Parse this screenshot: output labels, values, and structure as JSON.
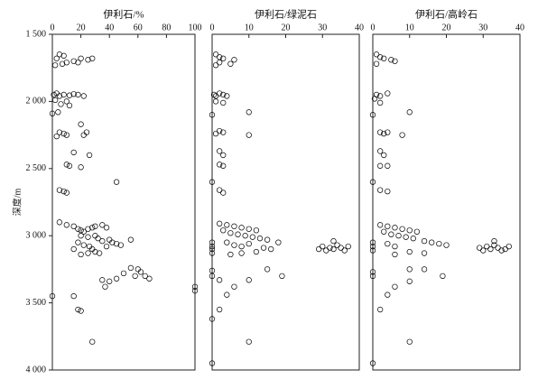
{
  "chart_data": [
    {
      "type": "scatter",
      "title": "伊利石/%",
      "ylabel": "深度/m",
      "color": "#000000",
      "xlim": [
        0,
        100
      ],
      "xticks": [
        0,
        20,
        40,
        60,
        80,
        100
      ],
      "ylim": [
        1500,
        4000
      ],
      "y_reversed": true,
      "yticks": [
        {
          "value": 1500,
          "label": "1 500"
        },
        {
          "value": 2000,
          "label": "2 000"
        },
        {
          "value": 2500,
          "label": "2 500"
        },
        {
          "value": 3000,
          "label": "3 000"
        },
        {
          "value": 3500,
          "label": "3 500"
        },
        {
          "value": 4000,
          "label": "4 000"
        }
      ],
      "x": [
        5,
        8,
        3,
        20,
        25,
        28,
        15,
        10,
        7,
        2,
        18,
        1,
        3,
        5,
        8,
        12,
        15,
        18,
        22,
        2,
        10,
        6,
        0,
        4,
        12,
        20,
        24,
        5,
        8,
        10,
        22,
        3,
        15,
        26,
        10,
        12,
        20,
        45,
        5,
        8,
        10,
        5,
        10,
        15,
        18,
        20,
        22,
        25,
        28,
        30,
        35,
        38,
        20,
        25,
        30,
        32,
        35,
        40,
        42,
        45,
        48,
        55,
        18,
        22,
        26,
        28,
        30,
        33,
        20,
        25,
        15,
        38,
        55,
        60,
        50,
        62,
        65,
        68,
        58,
        45,
        35,
        37,
        40,
        100,
        100,
        0,
        15,
        18,
        20,
        28
      ],
      "y": [
        1650,
        1660,
        1680,
        1680,
        1690,
        1680,
        1700,
        1710,
        1720,
        1730,
        1710,
        1950,
        1940,
        1960,
        1950,
        1955,
        1945,
        1950,
        1960,
        1990,
        2000,
        2020,
        2090,
        2080,
        2030,
        2170,
        2230,
        2230,
        2240,
        2250,
        2250,
        2260,
        2380,
        2400,
        2470,
        2480,
        2490,
        2600,
        2660,
        2670,
        2680,
        2900,
        2920,
        2930,
        2950,
        2960,
        2970,
        2950,
        2940,
        2930,
        2920,
        2940,
        3000,
        3010,
        3000,
        3020,
        3040,
        3030,
        3050,
        3060,
        3070,
        3030,
        3050,
        3070,
        3080,
        3100,
        3120,
        3130,
        3140,
        3130,
        3100,
        3080,
        3240,
        3250,
        3280,
        3270,
        3300,
        3320,
        3300,
        3320,
        3330,
        3380,
        3340,
        3380,
        3410,
        3450,
        3450,
        3550,
        3560,
        3790
      ]
    },
    {
      "type": "scatter",
      "title": "伊利石/绿泥石",
      "color": "#000000",
      "xlim": [
        0,
        40
      ],
      "xticks": [
        0,
        10,
        20,
        30,
        40
      ],
      "ylim": [
        1500,
        4000
      ],
      "y_reversed": true,
      "x": [
        1,
        2,
        3,
        6,
        5,
        1,
        2,
        0.5,
        1,
        2,
        3,
        4,
        1,
        3,
        0,
        10,
        2,
        1,
        3,
        10,
        2,
        3,
        2,
        3,
        0,
        2,
        3,
        2,
        4,
        6,
        8,
        10,
        12,
        3,
        5,
        7,
        9,
        11,
        13,
        15,
        4,
        6,
        8,
        10,
        14,
        16,
        18,
        0,
        0,
        0,
        0,
        29,
        30,
        31,
        32,
        33,
        34,
        35,
        36,
        37,
        33,
        8,
        12,
        5,
        0,
        0,
        15,
        19,
        2,
        10,
        4,
        6,
        2,
        0,
        10,
        0
      ],
      "y": [
        1650,
        1670,
        1680,
        1690,
        1720,
        1730,
        1710,
        1950,
        1960,
        1940,
        1950,
        1960,
        2000,
        2010,
        2100,
        2080,
        2220,
        2240,
        2230,
        2250,
        2370,
        2400,
        2470,
        2480,
        2600,
        2660,
        2680,
        2910,
        2920,
        2930,
        2940,
        2950,
        2960,
        2960,
        2980,
        2990,
        3000,
        3010,
        3020,
        3030,
        3050,
        3070,
        3080,
        3060,
        3090,
        3100,
        3050,
        3050,
        3080,
        3100,
        3130,
        3100,
        3080,
        3110,
        3090,
        3100,
        3070,
        3090,
        3110,
        3080,
        3040,
        3130,
        3120,
        3140,
        3260,
        3300,
        3250,
        3300,
        3330,
        3330,
        3440,
        3380,
        3550,
        3620,
        3790,
        3950
      ]
    },
    {
      "type": "scatter",
      "title": "伊利石/高岭石",
      "color": "#000000",
      "xlim": [
        0,
        40
      ],
      "xticks": [
        0,
        10,
        20,
        30,
        40
      ],
      "ylim": [
        1500,
        4000
      ],
      "y_reversed": true,
      "x": [
        1,
        2,
        3,
        5,
        6,
        1,
        1,
        2,
        4,
        0.5,
        2,
        10,
        0,
        2,
        3,
        4,
        8,
        2,
        3,
        2,
        4,
        0,
        2,
        4,
        2,
        4,
        6,
        8,
        10,
        12,
        3,
        5,
        7,
        9,
        11,
        14,
        16,
        18,
        20,
        4,
        6,
        0,
        0,
        0,
        29,
        30,
        31,
        32,
        33,
        34,
        35,
        36,
        37,
        33,
        10,
        14,
        6,
        0,
        0,
        10,
        14,
        19,
        10,
        4,
        6,
        2,
        10,
        0
      ],
      "y": [
        1650,
        1670,
        1680,
        1690,
        1700,
        1720,
        1950,
        1960,
        1940,
        1980,
        2010,
        2080,
        2100,
        2230,
        2240,
        2230,
        2250,
        2370,
        2400,
        2480,
        2480,
        2600,
        2660,
        2670,
        2920,
        2930,
        2940,
        2950,
        2960,
        2970,
        2970,
        2990,
        3000,
        3010,
        3020,
        3040,
        3050,
        3060,
        3070,
        3060,
        3080,
        3050,
        3080,
        3110,
        3090,
        3110,
        3080,
        3100,
        3070,
        3090,
        3110,
        3100,
        3080,
        3040,
        3120,
        3130,
        3140,
        3270,
        3300,
        3250,
        3250,
        3300,
        3340,
        3440,
        3380,
        3550,
        3790,
        3950
      ]
    }
  ]
}
